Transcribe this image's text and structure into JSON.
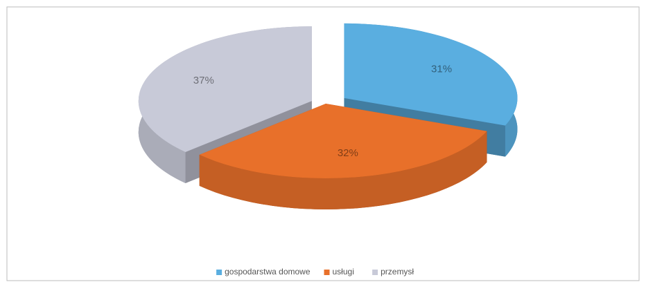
{
  "chart_data": {
    "type": "pie3d",
    "categories": [
      "gospodarstwa domowe",
      "usługi",
      "przemysł"
    ],
    "values": [
      31,
      32,
      37
    ],
    "value_labels": [
      "31%",
      "32%",
      "37%"
    ],
    "colors": [
      "#5aaee0",
      "#e8702a",
      "#c8cad8"
    ],
    "legend": "bottom"
  }
}
